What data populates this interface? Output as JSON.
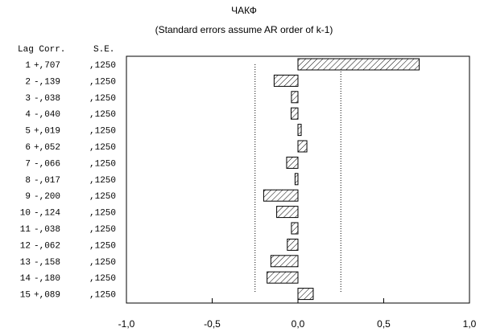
{
  "chart_data": {
    "type": "bar",
    "orientation": "horizontal",
    "title": "ЧАКФ",
    "subtitle": "(Standard errors assume AR order of k-1)",
    "table_headers": {
      "lag_corr": "Lag Corr.",
      "se": "S.E."
    },
    "lags": [
      "1",
      "2",
      "3",
      "4",
      "5",
      "6",
      "7",
      "8",
      "9",
      "10",
      "11",
      "12",
      "13",
      "14",
      "15"
    ],
    "corr_labels": [
      "+,707",
      "-,139",
      "-,038",
      "-,040",
      "+,019",
      "+,052",
      "-,066",
      "-,017",
      "-,200",
      "-,124",
      "-,038",
      "-,062",
      "-,158",
      "-,180",
      "+,089"
    ],
    "values": [
      0.707,
      -0.139,
      -0.038,
      -0.04,
      0.019,
      0.052,
      -0.066,
      -0.017,
      -0.2,
      -0.124,
      -0.038,
      -0.062,
      -0.158,
      -0.18,
      0.089
    ],
    "se_labels": [
      ",1250",
      ",1250",
      ",1250",
      ",1250",
      ",1250",
      ",1250",
      ",1250",
      ",1250",
      ",1250",
      ",1250",
      ",1250",
      ",1250",
      ",1250",
      ",1250",
      ",1250"
    ],
    "se_values": [
      0.125,
      0.125,
      0.125,
      0.125,
      0.125,
      0.125,
      0.125,
      0.125,
      0.125,
      0.125,
      0.125,
      0.125,
      0.125,
      0.125,
      0.125
    ],
    "confidence_limit": 0.25,
    "xlim": [
      -1.0,
      1.0
    ],
    "xticks": [
      -1.0,
      -0.5,
      0.0,
      0.5,
      1.0
    ],
    "xtick_labels": [
      "-1,0",
      "-0,5",
      "0,0",
      "0,5",
      "1,0"
    ],
    "grid": false,
    "bar_pattern": "diagonal-hatch"
  }
}
